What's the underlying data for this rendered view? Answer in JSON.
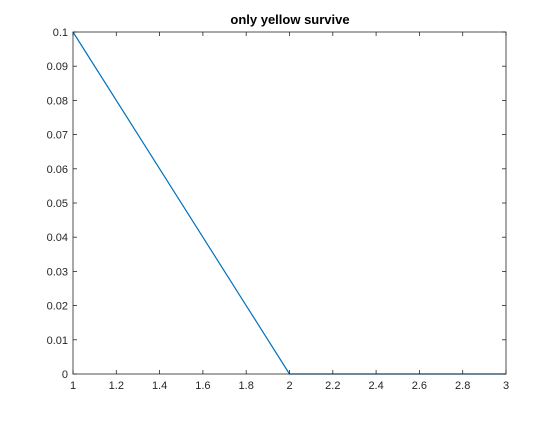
{
  "chart_data": {
    "type": "line",
    "title": "only yellow survive",
    "xlabel": "",
    "ylabel": "",
    "xlim": [
      1,
      3
    ],
    "ylim": [
      0,
      0.1
    ],
    "x_ticks": [
      "1",
      "1.2",
      "1.4",
      "1.6",
      "1.8",
      "2",
      "2.2",
      "2.4",
      "2.6",
      "2.8",
      "3"
    ],
    "y_ticks": [
      "0",
      "0.01",
      "0.02",
      "0.03",
      "0.04",
      "0.05",
      "0.06",
      "0.07",
      "0.08",
      "0.09",
      "0.1"
    ],
    "grid": false,
    "legend": "none",
    "series": [
      {
        "color": "#0072BD",
        "x": [
          1,
          2,
          3
        ],
        "y": [
          0.1,
          0,
          0
        ]
      }
    ]
  }
}
